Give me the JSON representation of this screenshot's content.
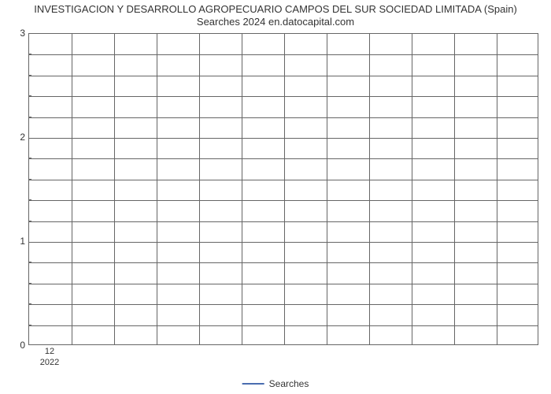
{
  "chart": {
    "type": "line",
    "title_line1": "INVESTIGACION Y DESARROLLO AGROPECUARIO CAMPOS DEL SUR SOCIEDAD LIMITADA (Spain)",
    "title_line2": "Searches 2024 en.datocapital.com",
    "title_fontsize": 13,
    "title_color": "#333333",
    "background_color": "#ffffff",
    "plot_border_color": "#666666",
    "grid_color": "#666666",
    "grid_line_width": 1,
    "xlim": [
      0,
      12
    ],
    "ylim": [
      0,
      3
    ],
    "x_grid_count": 12,
    "y_major_ticks": [
      0,
      1,
      2,
      3
    ],
    "y_minor_per_major": 5,
    "y_tick_labels": [
      "0",
      "1",
      "2",
      "3"
    ],
    "x_tick_label_top": "12",
    "x_tick_label_bottom": "2022",
    "x_tick_position_fraction": 0.0417,
    "series": [
      {
        "name": "Searches",
        "color": "#4a6db0",
        "line_width": 2,
        "data": []
      }
    ],
    "legend": {
      "label": "Searches",
      "position": "bottom-center",
      "line_color": "#4a6db0",
      "text_color": "#333333",
      "fontsize": 12
    },
    "axis_label_fontsize": 12,
    "axis_label_color": "#333333"
  }
}
